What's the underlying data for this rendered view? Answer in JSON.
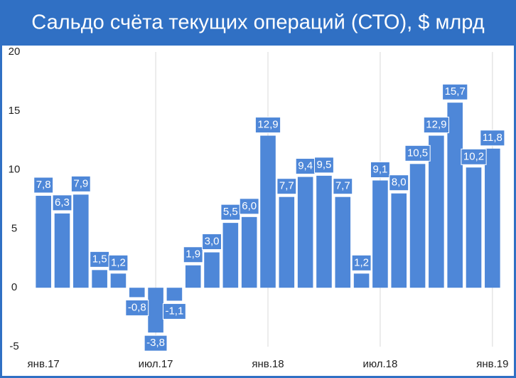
{
  "chart_data": {
    "type": "bar",
    "title": "Сальдо счёта текущих операций (СТО), $ млрд",
    "categories": [
      "янв.17",
      null,
      null,
      null,
      null,
      null,
      "июл.17",
      null,
      null,
      null,
      null,
      null,
      "янв.18",
      null,
      null,
      null,
      null,
      null,
      "июл.18",
      null,
      null,
      null,
      null,
      null,
      "янв.19"
    ],
    "values": [
      7.8,
      6.3,
      7.9,
      1.5,
      1.2,
      -0.8,
      -3.8,
      -1.1,
      1.9,
      3.0,
      5.5,
      6.0,
      12.9,
      7.7,
      9.4,
      9.5,
      7.7,
      1.2,
      9.1,
      8.0,
      10.5,
      12.9,
      15.7,
      10.2,
      11.8
    ],
    "value_labels": [
      "7,8",
      "6,3",
      "7,9",
      "1,5",
      "1,2",
      "-0,8",
      "-3,8",
      "-1,1",
      "1,9",
      "3,0",
      "5,5",
      "6,0",
      "12,9",
      "7,7",
      "9,4",
      "9,5",
      "7,7",
      "1,2",
      "9,1",
      "8,0",
      "10,5",
      "12,9",
      "15,7",
      "10,2",
      "11,8"
    ],
    "color": "#4e87d8",
    "ylim": [
      -5,
      20
    ],
    "yticks": [
      -5,
      0,
      5,
      10,
      15,
      20
    ],
    "x_grid": true
  }
}
